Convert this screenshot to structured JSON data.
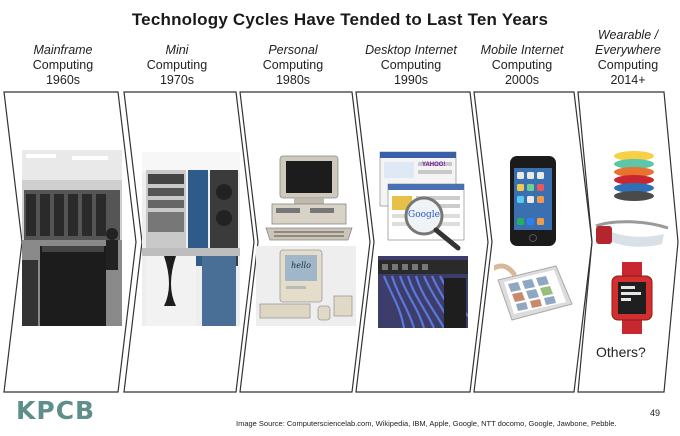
{
  "title": "Technology Cycles Have Tended to Last Ten Years",
  "eras": [
    {
      "line1": "Mainframe",
      "line2": "Computing",
      "line3": "1960s"
    },
    {
      "line1": "Mini",
      "line2": "Computing",
      "line3": "1970s"
    },
    {
      "line1": "Personal",
      "line2": "Computing",
      "line3": "1980s"
    },
    {
      "line1": "Desktop Internet",
      "line2": "Computing",
      "line3": "1990s"
    },
    {
      "line1": "Mobile Internet",
      "line2": "Computing",
      "line3": "2000s"
    },
    {
      "line1": "Wearable /",
      "line1b": "Everywhere",
      "line2": "Computing",
      "line3": "2014+"
    }
  ],
  "others_label": "Others?",
  "logo": "KPCB",
  "image_source": "Image Source: Computersciencelab.com, Wikipedia, IBM, Apple, Google, NTT docomo, Google, Jawbone, Pebble.",
  "page_number": "49",
  "google_label": "Google",
  "yahoo_label": "YAHOO!",
  "hello_label": "hello",
  "colors": {
    "chevron_stroke": "#333333",
    "logo": "#5e8f8b"
  }
}
